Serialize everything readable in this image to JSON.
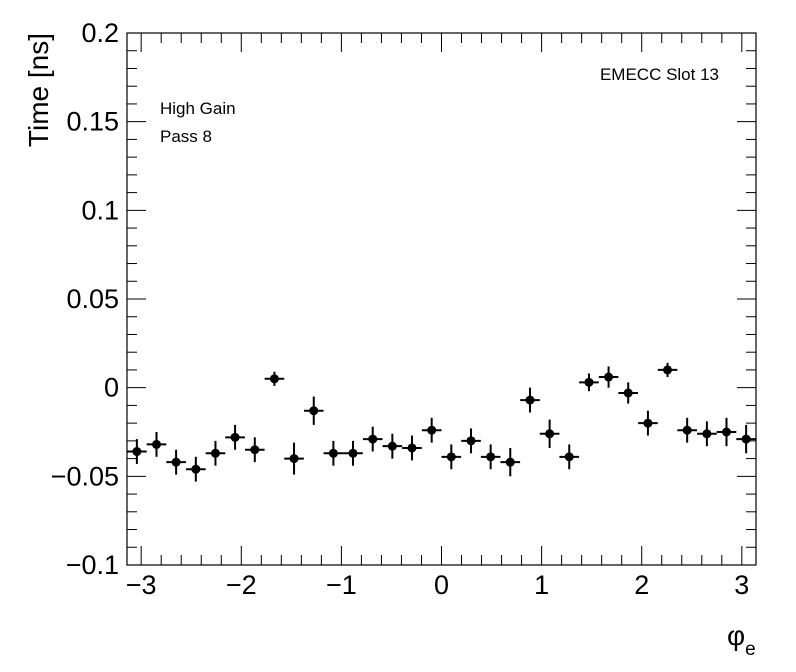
{
  "chart_data": {
    "type": "scatter",
    "ylabel": "Time [ns]",
    "xlabel": "φ",
    "xlabel_sub": "e",
    "xlim": [
      -3.1416,
      3.1416
    ],
    "ylim": [
      -0.1,
      0.2
    ],
    "x_ticks": [
      -3,
      -2,
      -1,
      0,
      1,
      2,
      3
    ],
    "x_tick_labels": [
      "−3",
      "−2",
      "−1",
      "0",
      "1",
      "2",
      "3"
    ],
    "y_ticks": [
      -0.1,
      -0.05,
      0,
      0.05,
      0.1,
      0.15,
      0.2
    ],
    "y_tick_labels": [
      "−0.1",
      "−0.05",
      "0",
      "0.05",
      "0.1",
      "0.15",
      "0.2"
    ],
    "annotations": {
      "slot": "EMECC Slot 13",
      "gain": "High Gain",
      "pass": "Pass 8"
    },
    "x_half_width": 0.098,
    "points": [
      {
        "x": -3.043,
        "y": -0.036,
        "yerr": 0.007
      },
      {
        "x": -2.847,
        "y": -0.032,
        "yerr": 0.007
      },
      {
        "x": -2.651,
        "y": -0.042,
        "yerr": 0.007
      },
      {
        "x": -2.454,
        "y": -0.046,
        "yerr": 0.007
      },
      {
        "x": -2.258,
        "y": -0.037,
        "yerr": 0.007
      },
      {
        "x": -2.062,
        "y": -0.028,
        "yerr": 0.007
      },
      {
        "x": -1.865,
        "y": -0.035,
        "yerr": 0.007
      },
      {
        "x": -1.669,
        "y": 0.005,
        "yerr": 0.004
      },
      {
        "x": -1.473,
        "y": -0.04,
        "yerr": 0.009
      },
      {
        "x": -1.276,
        "y": -0.013,
        "yerr": 0.008
      },
      {
        "x": -1.08,
        "y": -0.037,
        "yerr": 0.007
      },
      {
        "x": -0.884,
        "y": -0.037,
        "yerr": 0.007
      },
      {
        "x": -0.687,
        "y": -0.029,
        "yerr": 0.007
      },
      {
        "x": -0.491,
        "y": -0.033,
        "yerr": 0.007
      },
      {
        "x": -0.295,
        "y": -0.034,
        "yerr": 0.007
      },
      {
        "x": -0.098,
        "y": -0.024,
        "yerr": 0.007
      },
      {
        "x": 0.098,
        "y": -0.039,
        "yerr": 0.007
      },
      {
        "x": 0.295,
        "y": -0.03,
        "yerr": 0.007
      },
      {
        "x": 0.491,
        "y": -0.039,
        "yerr": 0.007
      },
      {
        "x": 0.687,
        "y": -0.042,
        "yerr": 0.008
      },
      {
        "x": 0.884,
        "y": -0.007,
        "yerr": 0.007
      },
      {
        "x": 1.08,
        "y": -0.026,
        "yerr": 0.008
      },
      {
        "x": 1.276,
        "y": -0.039,
        "yerr": 0.007
      },
      {
        "x": 1.473,
        "y": 0.003,
        "yerr": 0.005
      },
      {
        "x": 1.669,
        "y": 0.006,
        "yerr": 0.006
      },
      {
        "x": 1.865,
        "y": -0.003,
        "yerr": 0.006
      },
      {
        "x": 2.062,
        "y": -0.02,
        "yerr": 0.007
      },
      {
        "x": 2.258,
        "y": 0.01,
        "yerr": 0.004
      },
      {
        "x": 2.454,
        "y": -0.024,
        "yerr": 0.007
      },
      {
        "x": 2.651,
        "y": -0.026,
        "yerr": 0.007
      },
      {
        "x": 2.847,
        "y": -0.025,
        "yerr": 0.008
      },
      {
        "x": 3.043,
        "y": -0.029,
        "yerr": 0.008
      }
    ]
  }
}
